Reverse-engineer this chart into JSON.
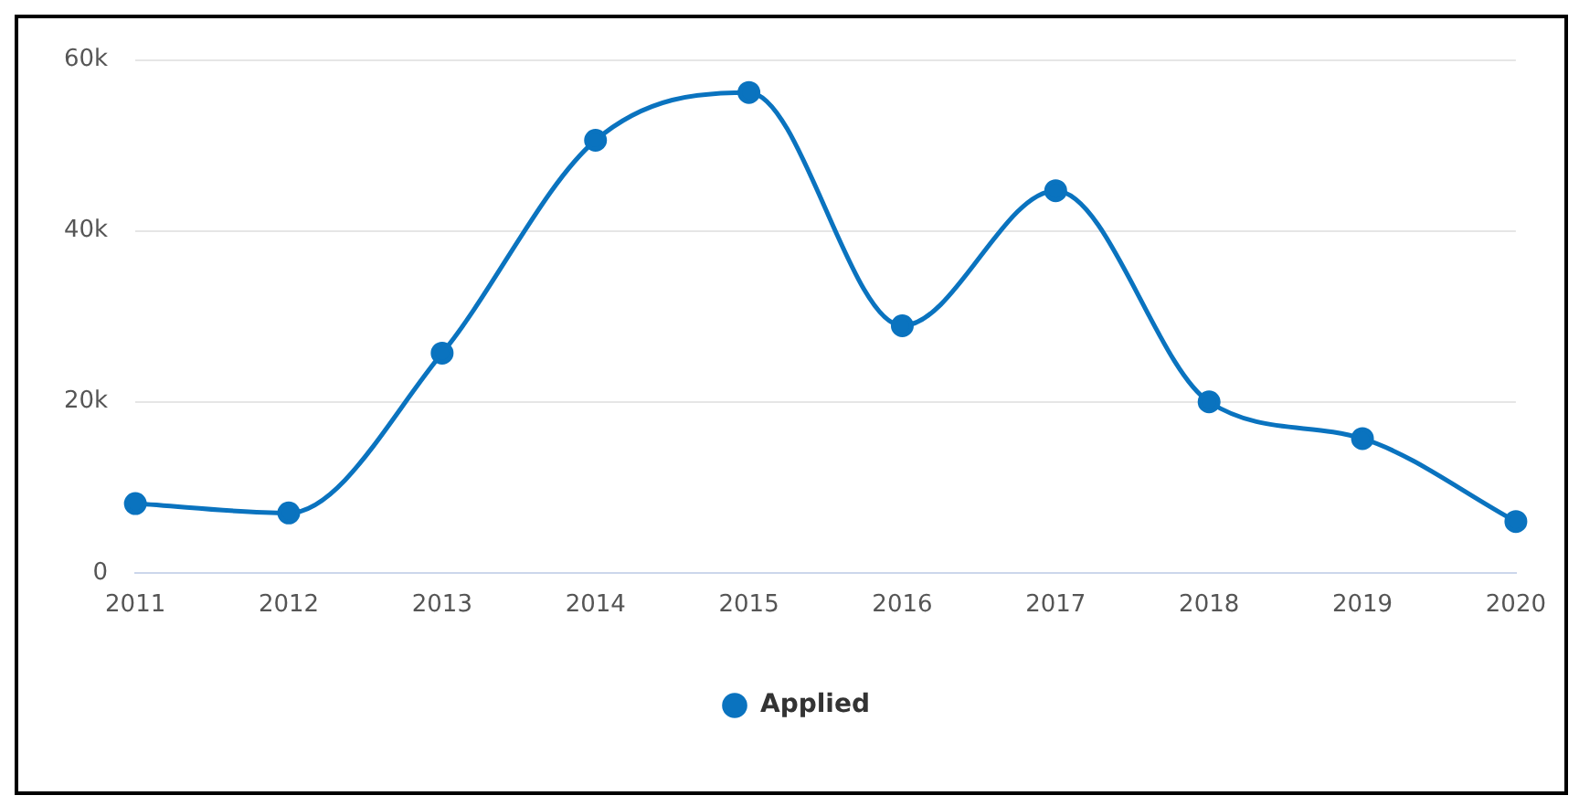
{
  "chart_data": {
    "type": "line",
    "categories": [
      "2011",
      "2012",
      "2013",
      "2014",
      "2015",
      "2016",
      "2017",
      "2018",
      "2019",
      "2020"
    ],
    "series": [
      {
        "name": "Applied",
        "color": "#0a73bf",
        "values": [
          8100,
          7000,
          25700,
          50600,
          56200,
          28900,
          44700,
          20000,
          15700,
          6000
        ]
      }
    ],
    "ylim": [
      0,
      60000
    ],
    "yticks": [
      {
        "value": 0,
        "label": "0"
      },
      {
        "value": 20000,
        "label": "20k"
      },
      {
        "value": 40000,
        "label": "40k"
      },
      {
        "value": 60000,
        "label": "60k"
      }
    ],
    "grid": "y",
    "legend": "bottom",
    "marker": "circle",
    "line_style": "solid"
  }
}
